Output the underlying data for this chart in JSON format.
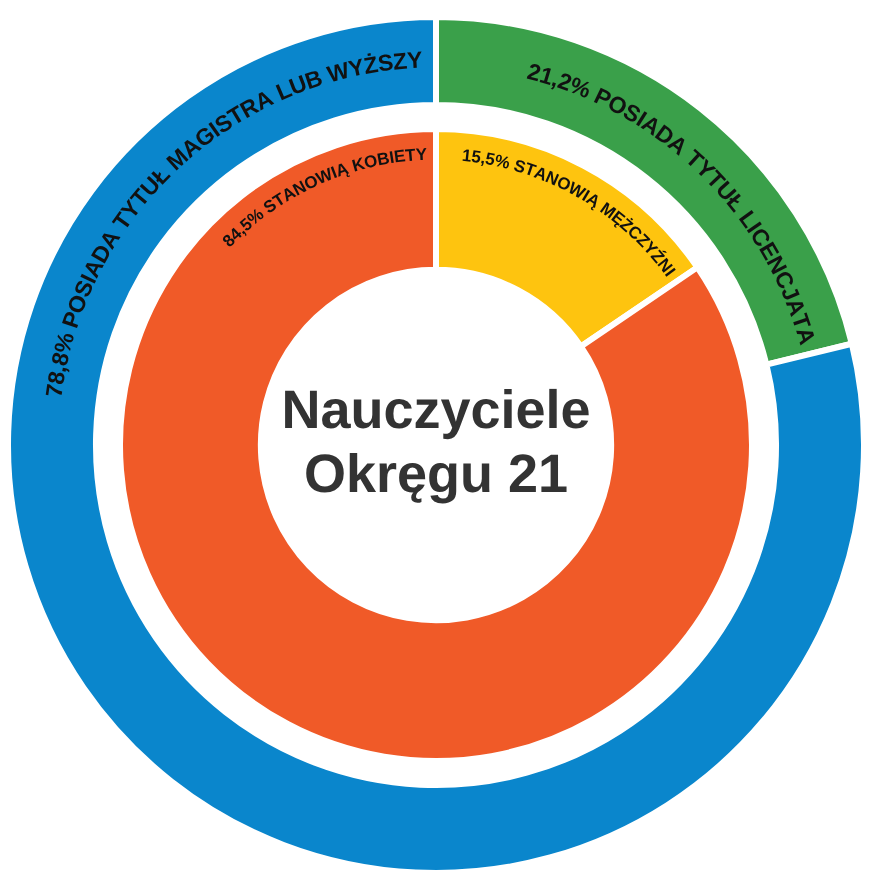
{
  "chart_data": [
    {
      "type": "donut",
      "categories": [
        "POSIADA TYTUŁ LICENCJATA",
        "POSIADA TYTUŁ MAGISTRA LUB WYŻSZY"
      ],
      "values": [
        21.2,
        78.8
      ],
      "value_labels": [
        "21,2%",
        "78,8%"
      ],
      "colors": [
        "#3aa04a",
        "#0a86cc"
      ],
      "legend": false
    },
    {
      "type": "donut",
      "title": "Nauczyciele Okręgu 21",
      "categories": [
        "STANOWIĄ MĘŻCZYŹNI",
        "STANOWIĄ KOBIETY"
      ],
      "values": [
        15.5,
        84.5
      ],
      "value_labels": [
        "15,5%",
        "84,5%"
      ],
      "colors": [
        "#fec40f",
        "#f05a28"
      ],
      "legend": false
    }
  ]
}
